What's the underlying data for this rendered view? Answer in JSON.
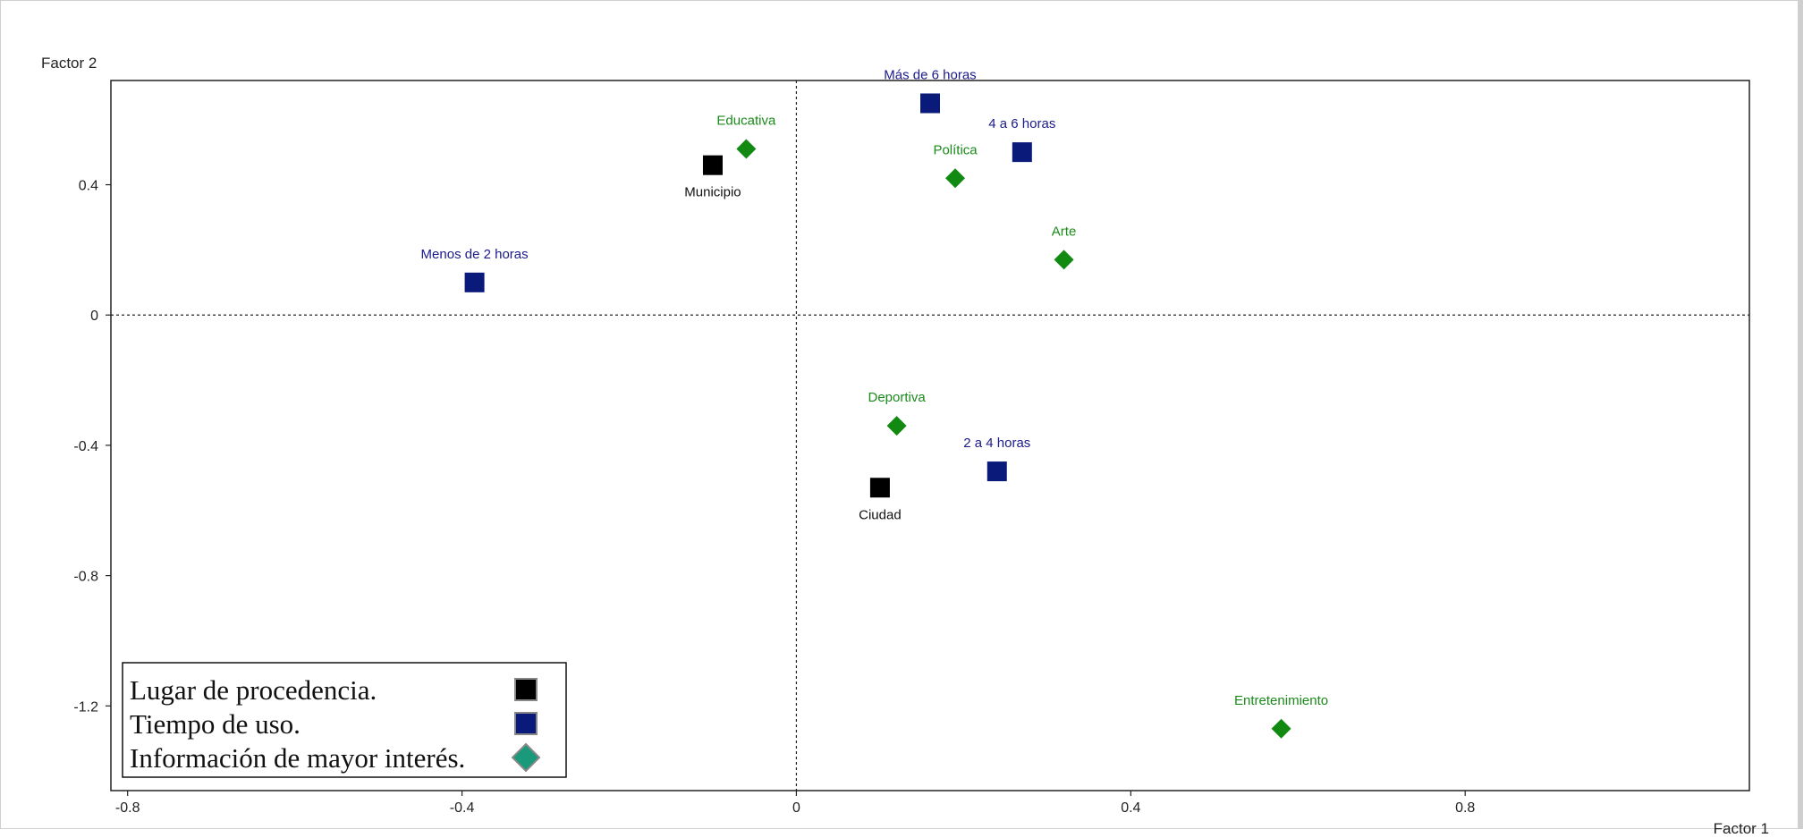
{
  "chart_data": {
    "type": "scatter",
    "xlabel": "Factor 1",
    "ylabel": "Factor 2",
    "xlim": [
      -0.82,
      1.14
    ],
    "ylim": [
      -1.46,
      0.72
    ],
    "xticks": [
      -0.8,
      -0.4,
      0,
      0.4,
      0.8
    ],
    "yticks": [
      0.4,
      0,
      -0.4,
      -0.8,
      -1.2
    ],
    "grid": false,
    "reference_lines": [
      0,
      0
    ],
    "legend_position": "bottom-left",
    "series": [
      {
        "name": "Lugar de procedencia.",
        "marker": "square",
        "color": "#000000",
        "label_color": "#111111",
        "points": [
          {
            "label": "Municipio",
            "x": -0.1,
            "y": 0.46,
            "label_pos": "below"
          },
          {
            "label": "Ciudad",
            "x": 0.1,
            "y": -0.53,
            "label_pos": "below"
          }
        ]
      },
      {
        "name": "Tiempo de uso.",
        "marker": "square",
        "color": "#0a1a7a",
        "label_color": "#1a1a8a",
        "points": [
          {
            "label": "Más de 6 horas",
            "x": 0.16,
            "y": 0.65,
            "label_pos": "above"
          },
          {
            "label": "4 a 6 horas",
            "x": 0.27,
            "y": 0.5,
            "label_pos": "above"
          },
          {
            "label": "Menos de 2 horas",
            "x": -0.385,
            "y": 0.1,
            "label_pos": "above"
          },
          {
            "label": "2 a 4 horas",
            "x": 0.24,
            "y": -0.48,
            "label_pos": "above"
          }
        ]
      },
      {
        "name": "Información de mayor interés.",
        "marker": "diamond",
        "color": "#128a12",
        "legend_color": "#1a9a7a",
        "label_color": "#1a8a1a",
        "points": [
          {
            "label": "Educativa",
            "x": -0.06,
            "y": 0.51,
            "label_pos": "above"
          },
          {
            "label": "Política",
            "x": 0.19,
            "y": 0.42,
            "label_pos": "above"
          },
          {
            "label": "Arte",
            "x": 0.32,
            "y": 0.17,
            "label_pos": "above"
          },
          {
            "label": "Deportiva",
            "x": 0.12,
            "y": -0.34,
            "label_pos": "above"
          },
          {
            "label": "Entretenimiento",
            "x": 0.58,
            "y": -1.27,
            "label_pos": "above"
          }
        ]
      }
    ]
  }
}
